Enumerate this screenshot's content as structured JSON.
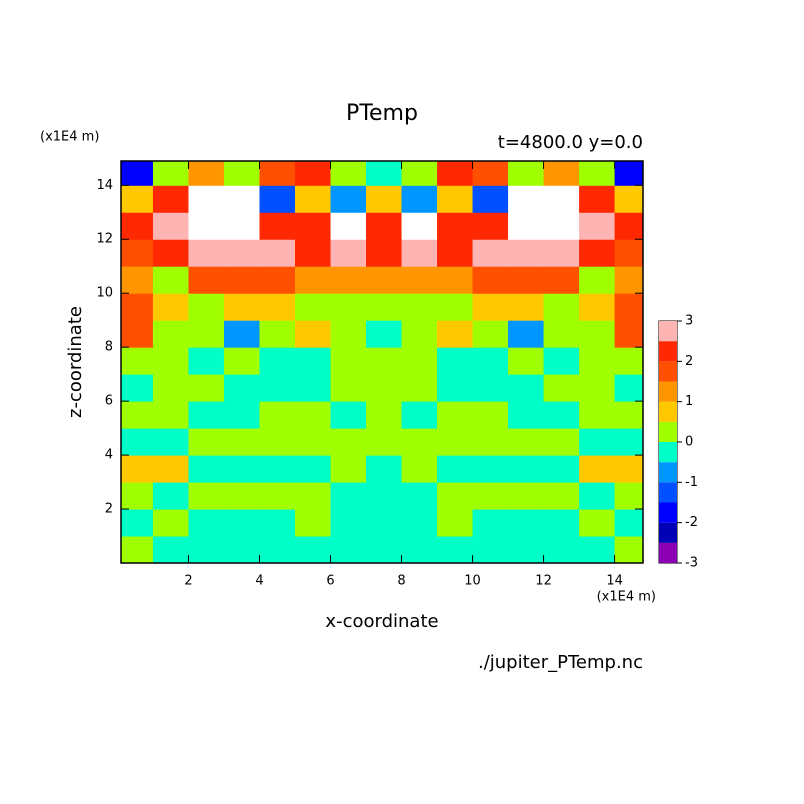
{
  "chart_data": {
    "type": "contour",
    "title": "PTemp",
    "subtitle": "t=4800.0 y=0.0",
    "y_unit": "(x1E4 m)",
    "x_unit": "(x1E4 m)",
    "x_label": "x-coordinate",
    "y_label": "z-coordinate",
    "source": "./jupiter_PTemp.nc",
    "xlim": [
      0.1,
      14.8
    ],
    "ylim": [
      0.0,
      14.9
    ],
    "xticks": [
      2,
      4,
      6,
      8,
      10,
      12,
      14
    ],
    "yticks": [
      2,
      4,
      6,
      8,
      10,
      12,
      14
    ],
    "x": [
      0.5,
      1.5,
      2.5,
      3.5,
      4.5,
      5.5,
      6.5,
      7.5,
      8.5,
      9.5,
      10.5,
      11.5,
      12.5,
      13.5,
      14.5
    ],
    "y": [
      0.5,
      1.5,
      2.5,
      3.5,
      4.5,
      5.5,
      6.5,
      7.5,
      8.5,
      9.5,
      10.5,
      11.5,
      12.5,
      13.5,
      14.5
    ],
    "values": [
      [
        0.2,
        -0.2,
        -0.2,
        -0.2,
        -0.2,
        -0.2,
        -0.2,
        -0.2,
        -0.2,
        -0.2,
        -0.2,
        -0.2,
        -0.2,
        -0.2,
        0.2
      ],
      [
        -0.2,
        0.2,
        -0.2,
        -0.2,
        -0.2,
        0.2,
        -0.2,
        -0.2,
        -0.2,
        0.2,
        -0.2,
        -0.2,
        -0.2,
        0.2,
        -0.2
      ],
      [
        0.2,
        -0.2,
        0.2,
        0.2,
        0.2,
        0.2,
        -0.2,
        -0.2,
        -0.2,
        0.2,
        0.2,
        0.2,
        0.2,
        -0.2,
        0.2
      ],
      [
        0.7,
        0.7,
        -0.2,
        -0.2,
        -0.2,
        -0.2,
        0.2,
        -0.2,
        0.2,
        -0.2,
        -0.2,
        -0.2,
        -0.2,
        0.7,
        0.7
      ],
      [
        -0.2,
        -0.2,
        0.2,
        0.2,
        0.2,
        0.2,
        0.2,
        0.2,
        0.2,
        0.2,
        0.2,
        0.2,
        0.2,
        -0.2,
        -0.2
      ],
      [
        0.2,
        0.2,
        -0.2,
        -0.2,
        0.2,
        0.2,
        -0.2,
        0.2,
        -0.2,
        0.2,
        0.2,
        -0.2,
        -0.2,
        0.2,
        0.2
      ],
      [
        -0.2,
        0.2,
        0.2,
        -0.2,
        -0.2,
        -0.2,
        0.2,
        0.2,
        0.2,
        -0.2,
        -0.2,
        -0.2,
        0.2,
        0.2,
        -0.2
      ],
      [
        0.2,
        0.2,
        -0.2,
        0.2,
        -0.2,
        -0.2,
        0.2,
        0.2,
        0.2,
        -0.2,
        -0.2,
        0.2,
        -0.2,
        0.2,
        0.2
      ],
      [
        1.7,
        0.2,
        0.2,
        -0.7,
        0.2,
        0.7,
        0.2,
        -0.2,
        0.2,
        0.7,
        0.2,
        -0.7,
        0.2,
        0.2,
        1.7
      ],
      [
        1.7,
        0.7,
        0.2,
        0.7,
        0.7,
        0.2,
        0.2,
        0.2,
        0.2,
        0.2,
        0.7,
        0.7,
        0.2,
        0.7,
        1.7
      ],
      [
        1.2,
        0.2,
        1.7,
        1.7,
        1.7,
        1.2,
        1.2,
        1.2,
        1.2,
        1.2,
        1.7,
        1.7,
        1.7,
        0.2,
        1.2
      ],
      [
        1.7,
        2.2,
        2.7,
        2.7,
        2.7,
        2.2,
        2.7,
        2.2,
        2.7,
        2.2,
        2.7,
        2.7,
        2.7,
        2.2,
        1.7
      ],
      [
        2.2,
        2.7,
        3.5,
        3.5,
        2.2,
        2.2,
        3.5,
        2.2,
        3.5,
        2.2,
        2.2,
        3.5,
        3.5,
        2.7,
        2.2
      ],
      [
        0.7,
        2.2,
        3.5,
        3.5,
        -1.2,
        0.7,
        -0.7,
        0.7,
        -0.7,
        0.7,
        -1.2,
        3.5,
        3.5,
        2.2,
        0.7
      ],
      [
        -1.7,
        0.2,
        1.2,
        0.2,
        1.7,
        2.2,
        0.2,
        -0.2,
        0.2,
        2.2,
        1.7,
        0.2,
        1.2,
        0.2,
        -1.7
      ]
    ],
    "levels": [
      -3,
      -2.5,
      -2,
      -1.5,
      -1,
      -0.5,
      0,
      0.5,
      1,
      1.5,
      2,
      2.5,
      3
    ],
    "colors": [
      "#8c00b4",
      "#0000b4",
      "#0000ff",
      "#0050ff",
      "#0096ff",
      "#00ffc8",
      "#a0ff00",
      "#ffc800",
      "#ff9600",
      "#ff5000",
      "#ff2800",
      "#ffb4b4"
    ],
    "over_color": "#ffffff",
    "colorbar_ticks": [
      -3,
      -2,
      -1,
      0,
      1,
      2,
      3
    ]
  }
}
